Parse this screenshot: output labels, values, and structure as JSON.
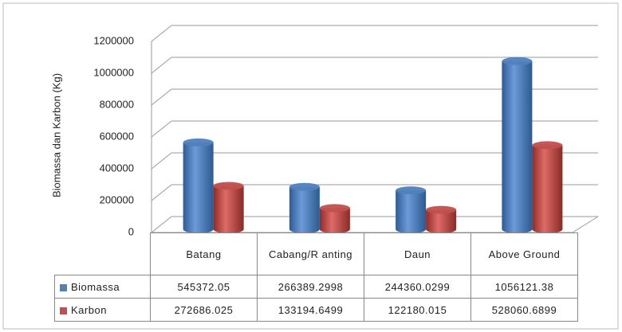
{
  "chart_data": {
    "type": "bar",
    "y_label": "Biomassa dan Karbon (Kg)",
    "categories": [
      "Batang",
      "Cabang/R anting",
      "Daun",
      "Above Ground"
    ],
    "series": [
      {
        "name": "Biomassa",
        "color": "#4f81bd",
        "values": [
          545372.05,
          266389.2998,
          244360.0299,
          1056121.38
        ]
      },
      {
        "name": "Karbon",
        "color": "#c0504d",
        "values": [
          272686.025,
          133194.6499,
          122180.015,
          528060.6899
        ]
      }
    ],
    "ylim": [
      0,
      1200000
    ],
    "yticks": [
      0,
      200000,
      400000,
      600000,
      800000,
      1000000,
      1200000
    ],
    "grid": true
  }
}
